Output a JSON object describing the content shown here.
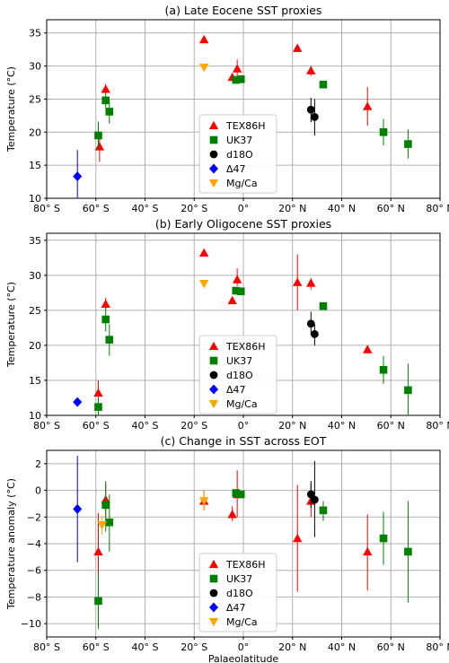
{
  "colors": {
    "TEX86H": "#ff0000",
    "UK37": "#008000",
    "d18O": "#000000",
    "D47": "#0000ff",
    "MgCa": "#ffa500"
  },
  "chart_data": [
    {
      "type": "scatter",
      "title": "(a) Late Eocene SST proxies",
      "xlabel": "",
      "ylabel": "Temperature (°C)",
      "xlim": [
        -80,
        80
      ],
      "ylim": [
        10,
        37
      ],
      "xticks": [
        -80,
        -60,
        -40,
        -20,
        0,
        20,
        40,
        60,
        80
      ],
      "xtick_labels": [
        "80° S",
        "60° S",
        "40° S",
        "20° S",
        "0°",
        "20° N",
        "40° N",
        "60° N",
        "80° N"
      ],
      "yticks": [
        10,
        15,
        20,
        25,
        30,
        35
      ],
      "ytick_labels": [
        "10",
        "15",
        "20",
        "25",
        "30",
        "35"
      ],
      "grid": true,
      "legend_position": "center",
      "series": [
        {
          "name": "TEX86H",
          "marker": "triangle-up",
          "points": [
            {
              "x": -58.5,
              "y": 17.8,
              "lo": 15.5,
              "hi": 20.0
            },
            {
              "x": -56.0,
              "y": 26.5,
              "lo": 25.8,
              "hi": 27.3
            },
            {
              "x": -16.0,
              "y": 34.0
            },
            {
              "x": -4.5,
              "y": 28.3
            },
            {
              "x": -2.5,
              "y": 29.6,
              "lo": 28.5,
              "hi": 31.0
            },
            {
              "x": 22.0,
              "y": 32.7
            },
            {
              "x": 27.5,
              "y": 29.3,
              "lo": 28.5,
              "hi": 30.0
            },
            {
              "x": 50.5,
              "y": 23.9,
              "lo": 21.0,
              "hi": 26.8
            }
          ]
        },
        {
          "name": "UK37",
          "marker": "square",
          "points": [
            {
              "x": -59.0,
              "y": 19.5,
              "lo": 17.3,
              "hi": 21.6
            },
            {
              "x": -56.0,
              "y": 24.8,
              "lo": 23.6,
              "hi": 26.0
            },
            {
              "x": -54.5,
              "y": 23.1,
              "lo": 21.3,
              "hi": 24.8
            },
            {
              "x": -3.0,
              "y": 27.9
            },
            {
              "x": -1.0,
              "y": 28.0
            },
            {
              "x": 32.5,
              "y": 27.2
            },
            {
              "x": 57.0,
              "y": 20.0,
              "lo": 18.0,
              "hi": 22.0
            },
            {
              "x": 67.0,
              "y": 18.2,
              "lo": 16.0,
              "hi": 20.4
            }
          ]
        },
        {
          "name": "d18O",
          "marker": "circle",
          "points": [
            {
              "x": 27.5,
              "y": 23.4,
              "lo": 21.5,
              "hi": 25.2
            },
            {
              "x": 29.0,
              "y": 22.3,
              "lo": 19.5,
              "hi": 25.0
            }
          ]
        },
        {
          "name": "Δ47",
          "marker": "diamond",
          "points": [
            {
              "x": -67.5,
              "y": 13.3,
              "lo": 10.0,
              "hi": 17.3
            }
          ]
        },
        {
          "name": "Mg/Ca",
          "marker": "triangle-down",
          "points": [
            {
              "x": -16.0,
              "y": 29.8
            }
          ]
        }
      ]
    },
    {
      "type": "scatter",
      "title": "(b) Early Oligocene SST proxies",
      "xlabel": "",
      "ylabel": "Temperature (°C)",
      "xlim": [
        -80,
        80
      ],
      "ylim": [
        10,
        36
      ],
      "xticks": [
        -80,
        -60,
        -40,
        -20,
        0,
        20,
        40,
        60,
        80
      ],
      "xtick_labels": [
        "80° S",
        "60° S",
        "40° S",
        "20° S",
        "0°",
        "20° N",
        "40° N",
        "60° N",
        "80° N"
      ],
      "yticks": [
        10,
        15,
        20,
        25,
        30,
        35
      ],
      "ytick_labels": [
        "10",
        "15",
        "20",
        "25",
        "30",
        "35"
      ],
      "grid": true,
      "legend_position": "center",
      "series": [
        {
          "name": "TEX86H",
          "marker": "triangle-up",
          "points": [
            {
              "x": -59.0,
              "y": 13.2,
              "lo": 11.5,
              "hi": 15.0
            },
            {
              "x": -56.0,
              "y": 25.9,
              "lo": 25.0,
              "hi": 26.8
            },
            {
              "x": -16.0,
              "y": 33.2
            },
            {
              "x": -4.5,
              "y": 26.4
            },
            {
              "x": -2.5,
              "y": 29.4,
              "lo": 28.5,
              "hi": 31.0
            },
            {
              "x": 22.0,
              "y": 29.0,
              "lo": 25.0,
              "hi": 33.0
            },
            {
              "x": 27.5,
              "y": 28.9,
              "lo": 28.0,
              "hi": 29.6
            },
            {
              "x": 50.5,
              "y": 19.4,
              "lo": 18.8,
              "hi": 20.0
            }
          ]
        },
        {
          "name": "UK37",
          "marker": "square",
          "points": [
            {
              "x": -59.0,
              "y": 11.2,
              "lo": 10.0,
              "hi": 12.6
            },
            {
              "x": -56.0,
              "y": 23.7,
              "lo": 22.0,
              "hi": 25.4
            },
            {
              "x": -54.5,
              "y": 20.8,
              "lo": 18.5,
              "hi": 23.0
            },
            {
              "x": -3.0,
              "y": 27.8
            },
            {
              "x": -1.0,
              "y": 27.7
            },
            {
              "x": 32.5,
              "y": 25.6
            },
            {
              "x": 57.0,
              "y": 16.5,
              "lo": 14.5,
              "hi": 18.5
            },
            {
              "x": 67.0,
              "y": 13.6,
              "lo": 10.0,
              "hi": 17.4
            }
          ]
        },
        {
          "name": "d18O",
          "marker": "circle",
          "points": [
            {
              "x": 27.5,
              "y": 23.1,
              "lo": 21.5,
              "hi": 24.8
            },
            {
              "x": 29.0,
              "y": 21.6,
              "lo": 20.0,
              "hi": 23.0
            }
          ]
        },
        {
          "name": "Δ47",
          "marker": "diamond",
          "points": [
            {
              "x": -67.5,
              "y": 11.9
            }
          ]
        },
        {
          "name": "Mg/Ca",
          "marker": "triangle-down",
          "points": [
            {
              "x": -16.0,
              "y": 28.8
            }
          ]
        }
      ]
    },
    {
      "type": "scatter",
      "title": "(c) Change in SST across EOT",
      "xlabel": "Palaeolatitude",
      "ylabel": "Temperature anomaly (°C)",
      "xlim": [
        -80,
        80
      ],
      "ylim": [
        -11,
        3
      ],
      "xticks": [
        -80,
        -60,
        -40,
        -20,
        0,
        20,
        40,
        60,
        80
      ],
      "xtick_labels": [
        "80° S",
        "60° S",
        "40° S",
        "20° S",
        "0°",
        "20° N",
        "40° N",
        "60° N",
        "80° N"
      ],
      "yticks": [
        -10,
        -8,
        -6,
        -4,
        -2,
        0,
        2
      ],
      "ytick_labels": [
        "−10",
        "−8",
        "−6",
        "−4",
        "−2",
        "0",
        "2"
      ],
      "grid": true,
      "legend_position": "center",
      "series": [
        {
          "name": "TEX86H",
          "marker": "triangle-up",
          "points": [
            {
              "x": -59.0,
              "y": -4.6,
              "lo": -7.5,
              "hi": -1.7
            },
            {
              "x": -56.0,
              "y": -0.7,
              "lo": -2.0,
              "hi": 0.5
            },
            {
              "x": -16.0,
              "y": -0.8,
              "lo": -1.5,
              "hi": 0.0
            },
            {
              "x": -4.5,
              "y": -1.8,
              "lo": -2.3,
              "hi": -1.2
            },
            {
              "x": -2.5,
              "y": -0.3,
              "lo": -2.0,
              "hi": 1.5
            },
            {
              "x": 22.0,
              "y": -3.6,
              "lo": -7.6,
              "hi": 0.4
            },
            {
              "x": 27.5,
              "y": -0.8,
              "lo": -2.0,
              "hi": 0.5
            },
            {
              "x": 50.5,
              "y": -4.6,
              "lo": -7.5,
              "hi": -1.8
            }
          ]
        },
        {
          "name": "UK37",
          "marker": "square",
          "points": [
            {
              "x": -59.0,
              "y": -8.3,
              "lo": -10.4,
              "hi": -6.2
            },
            {
              "x": -56.0,
              "y": -1.1,
              "lo": -3.1,
              "hi": 0.7
            },
            {
              "x": -54.5,
              "y": -2.4,
              "lo": -4.6,
              "hi": -0.3
            },
            {
              "x": -3.0,
              "y": -0.2
            },
            {
              "x": -1.0,
              "y": -0.3
            },
            {
              "x": 32.5,
              "y": -1.5,
              "lo": -2.3,
              "hi": -0.8
            },
            {
              "x": 57.0,
              "y": -3.6,
              "lo": -5.6,
              "hi": -1.6
            },
            {
              "x": 67.0,
              "y": -4.6,
              "lo": -8.4,
              "hi": -0.8
            }
          ]
        },
        {
          "name": "d18O",
          "marker": "circle",
          "points": [
            {
              "x": 27.5,
              "y": -0.3,
              "lo": -1.3,
              "hi": 0.7
            },
            {
              "x": 29.0,
              "y": -0.7,
              "lo": -3.5,
              "hi": 2.2
            }
          ]
        },
        {
          "name": "Δ47",
          "marker": "diamond",
          "points": [
            {
              "x": -67.5,
              "y": -1.4,
              "lo": -5.4,
              "hi": 2.6
            }
          ]
        },
        {
          "name": "Mg/Ca",
          "marker": "triangle-down",
          "points": [
            {
              "x": -16.0,
              "y": -0.8,
              "lo": -1.5,
              "hi": 0.0
            },
            {
              "x": -57.5,
              "y": -2.6,
              "lo": -3.3,
              "hi": -1.9
            }
          ]
        }
      ]
    }
  ]
}
